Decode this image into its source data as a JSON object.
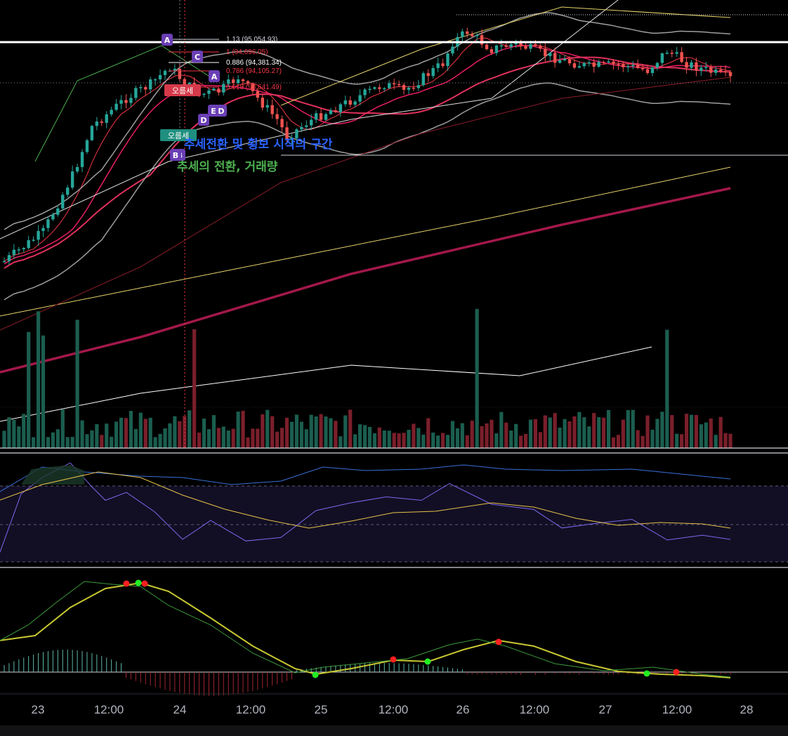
{
  "chart_data": {
    "type": "candlestick",
    "timeAxis": {
      "labels": [
        "23",
        "12:00",
        "24",
        "12:00",
        "25",
        "12:00",
        "26",
        "12:00",
        "27",
        "12:00",
        "28"
      ]
    },
    "fibonacci": [
      {
        "level": "1.13 (95,054.93)",
        "color": "#d1d4dc"
      },
      {
        "level": "1 (94,696.05)",
        "color": "#f23645"
      },
      {
        "level": "0.886 (94,381.34)",
        "color": "#ffffff"
      },
      {
        "level": "0.786 (94,105.27)",
        "color": "#f23645"
      },
      {
        "level": "0.618 (93,641.49)",
        "color": "#f23645"
      }
    ],
    "annotations": [
      {
        "text": "추세전환 및 횡보 시작의 구간",
        "color": "#2962ff"
      },
      {
        "text": "추세의 전환, 거래량",
        "color": "#4caf50"
      }
    ],
    "patternLabels": [
      "A",
      "C",
      "B",
      "D",
      "A",
      "E",
      "D",
      "B"
    ],
    "flags": [
      "오름세",
      "오름세"
    ],
    "colors": {
      "up": "#26a69a",
      "down": "#ef5350",
      "background": "#000000",
      "rsi": "#5b6ee1",
      "rsiMa": "#e8c14a",
      "macdSignal": "#c8c832",
      "macdLine": "#3c9a3c"
    }
  }
}
